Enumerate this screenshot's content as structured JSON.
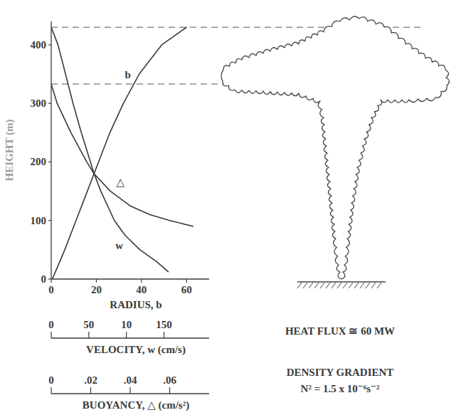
{
  "chart_data": {
    "type": "line",
    "ylabel": "HEIGHT (m)",
    "ylim": [
      0,
      440
    ],
    "yticks": [
      0,
      100,
      200,
      300,
      400
    ],
    "xlabel": "RADIUS, b",
    "xlim": [
      0,
      70
    ],
    "xticks": [
      0,
      20,
      40,
      60
    ],
    "x2label": "VELOCITY, w (cm/s)",
    "x2lim": [
      0,
      210
    ],
    "x2ticks": [
      0,
      50,
      {
        "value": 100,
        "label": "10"
      },
      150
    ],
    "x3label": "BUOYANCY, △ (cm/s²)",
    "x3lim": [
      0,
      0.08
    ],
    "x3ticks": [
      0,
      {
        "value": 0.02,
        "label": ".02"
      },
      {
        "value": 0.04,
        "label": ".04"
      },
      {
        "value": 0.06,
        "label": ".06"
      }
    ],
    "reference_heights": [
      430,
      333
    ],
    "series": [
      {
        "name": "b",
        "axis": "x",
        "color": "#3a3a3a",
        "heights": [
          0,
          50,
          100,
          150,
          180,
          200,
          250,
          300,
          350,
          400,
          430
        ],
        "values": [
          0.5,
          6,
          11,
          16,
          19,
          21,
          26,
          32,
          39,
          49,
          60
        ]
      },
      {
        "name": "△",
        "axis": "x3",
        "color": "#3a3a3a",
        "heights": [
          333,
          300,
          250,
          200,
          180,
          150,
          125,
          110,
          100,
          90
        ],
        "values": [
          0,
          0.003,
          0.01,
          0.018,
          0.0216,
          0.03,
          0.04,
          0.05,
          0.06,
          0.072
        ]
      },
      {
        "name": "w",
        "axis": "x2",
        "color": "#3a3a3a",
        "heights": [
          12,
          30,
          50,
          75,
          100,
          150,
          180,
          250,
          300,
          350,
          400,
          430
        ],
        "values": [
          156,
          140,
          118,
          98,
          84,
          66,
          57,
          40,
          29,
          19,
          9,
          0
        ]
      }
    ],
    "annotations": [
      "HEAT FLUX ≅ 60 MW",
      "DENSITY GRADIENT",
      "N² = 1.5 x 10⁻⁶s⁻²"
    ]
  }
}
